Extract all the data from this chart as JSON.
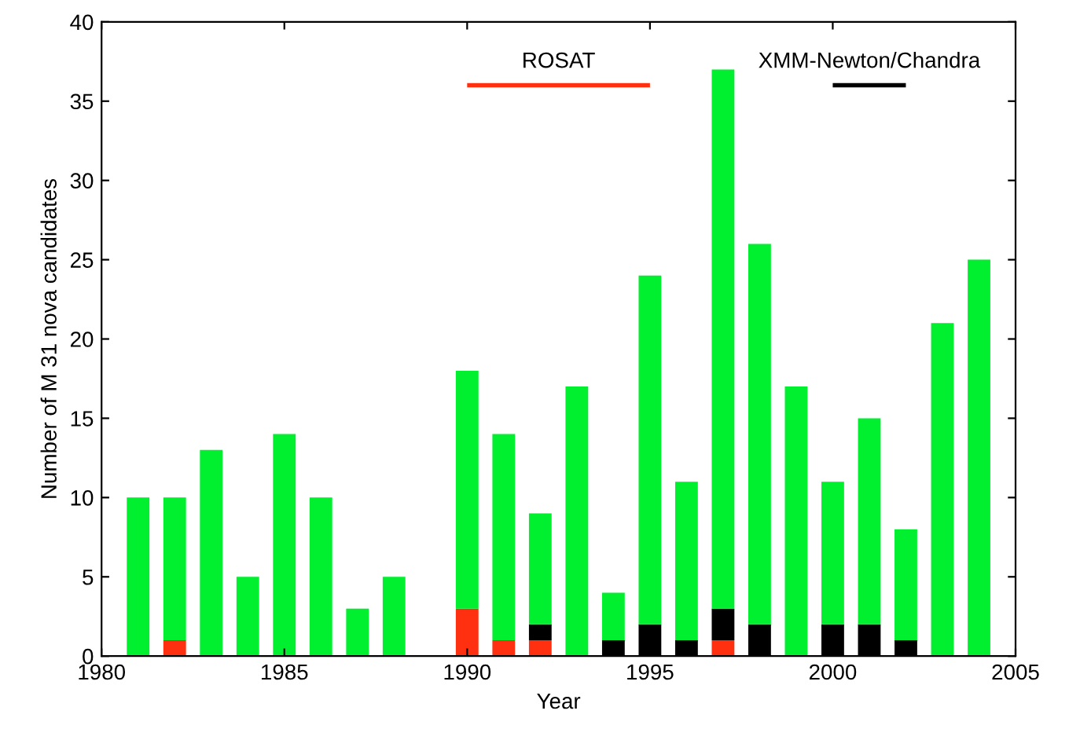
{
  "chart_data": {
    "type": "bar",
    "stacked": true,
    "xlabel": "Year",
    "ylabel": "Number of M 31 nova candidates",
    "x": [
      1981,
      1982,
      1983,
      1984,
      1985,
      1986,
      1987,
      1988,
      1990,
      1991,
      1992,
      1993,
      1994,
      1995,
      1996,
      1997,
      1998,
      1999,
      2000,
      2001,
      2002,
      2003,
      2004
    ],
    "series": [
      {
        "color": "#ff3010",
        "values": [
          0,
          1,
          0,
          0,
          0,
          0,
          0,
          0,
          3,
          1,
          1,
          0,
          0,
          0,
          0,
          1,
          0,
          0,
          0,
          0,
          0,
          0,
          0
        ]
      },
      {
        "color": "#000000",
        "values": [
          0,
          0,
          0,
          0,
          0,
          0,
          0,
          0,
          0,
          0,
          1,
          0,
          1,
          2,
          1,
          2,
          2,
          0,
          2,
          2,
          1,
          0,
          0
        ]
      },
      {
        "color": "#00f030",
        "values": [
          10,
          9,
          13,
          5,
          14,
          10,
          3,
          5,
          15,
          13,
          7,
          17,
          3,
          22,
          10,
          34,
          24,
          17,
          9,
          13,
          7,
          21,
          25
        ]
      },
      {
        "type": "line",
        "color": "#ff3010",
        "x": [
          1990,
          1995
        ],
        "values": [
          36,
          36
        ]
      },
      {
        "type": "line",
        "color": "#000000",
        "x": [
          2000,
          2002
        ],
        "values": [
          36,
          36
        ]
      }
    ],
    "xlim": [
      1980,
      2005
    ],
    "xticks": [
      1980,
      1985,
      1990,
      1995,
      2000,
      2005
    ],
    "ylim": [
      0,
      40
    ],
    "yticks": [
      0,
      5,
      10,
      15,
      20,
      25,
      30,
      35,
      40
    ],
    "annotations": [
      {
        "text": "ROSAT",
        "x": 1992.5,
        "y": 36
      },
      {
        "text": "XMM-Newton/Chandra",
        "x": 2001,
        "y": 36
      }
    ],
    "grid": false,
    "legend": false
  }
}
